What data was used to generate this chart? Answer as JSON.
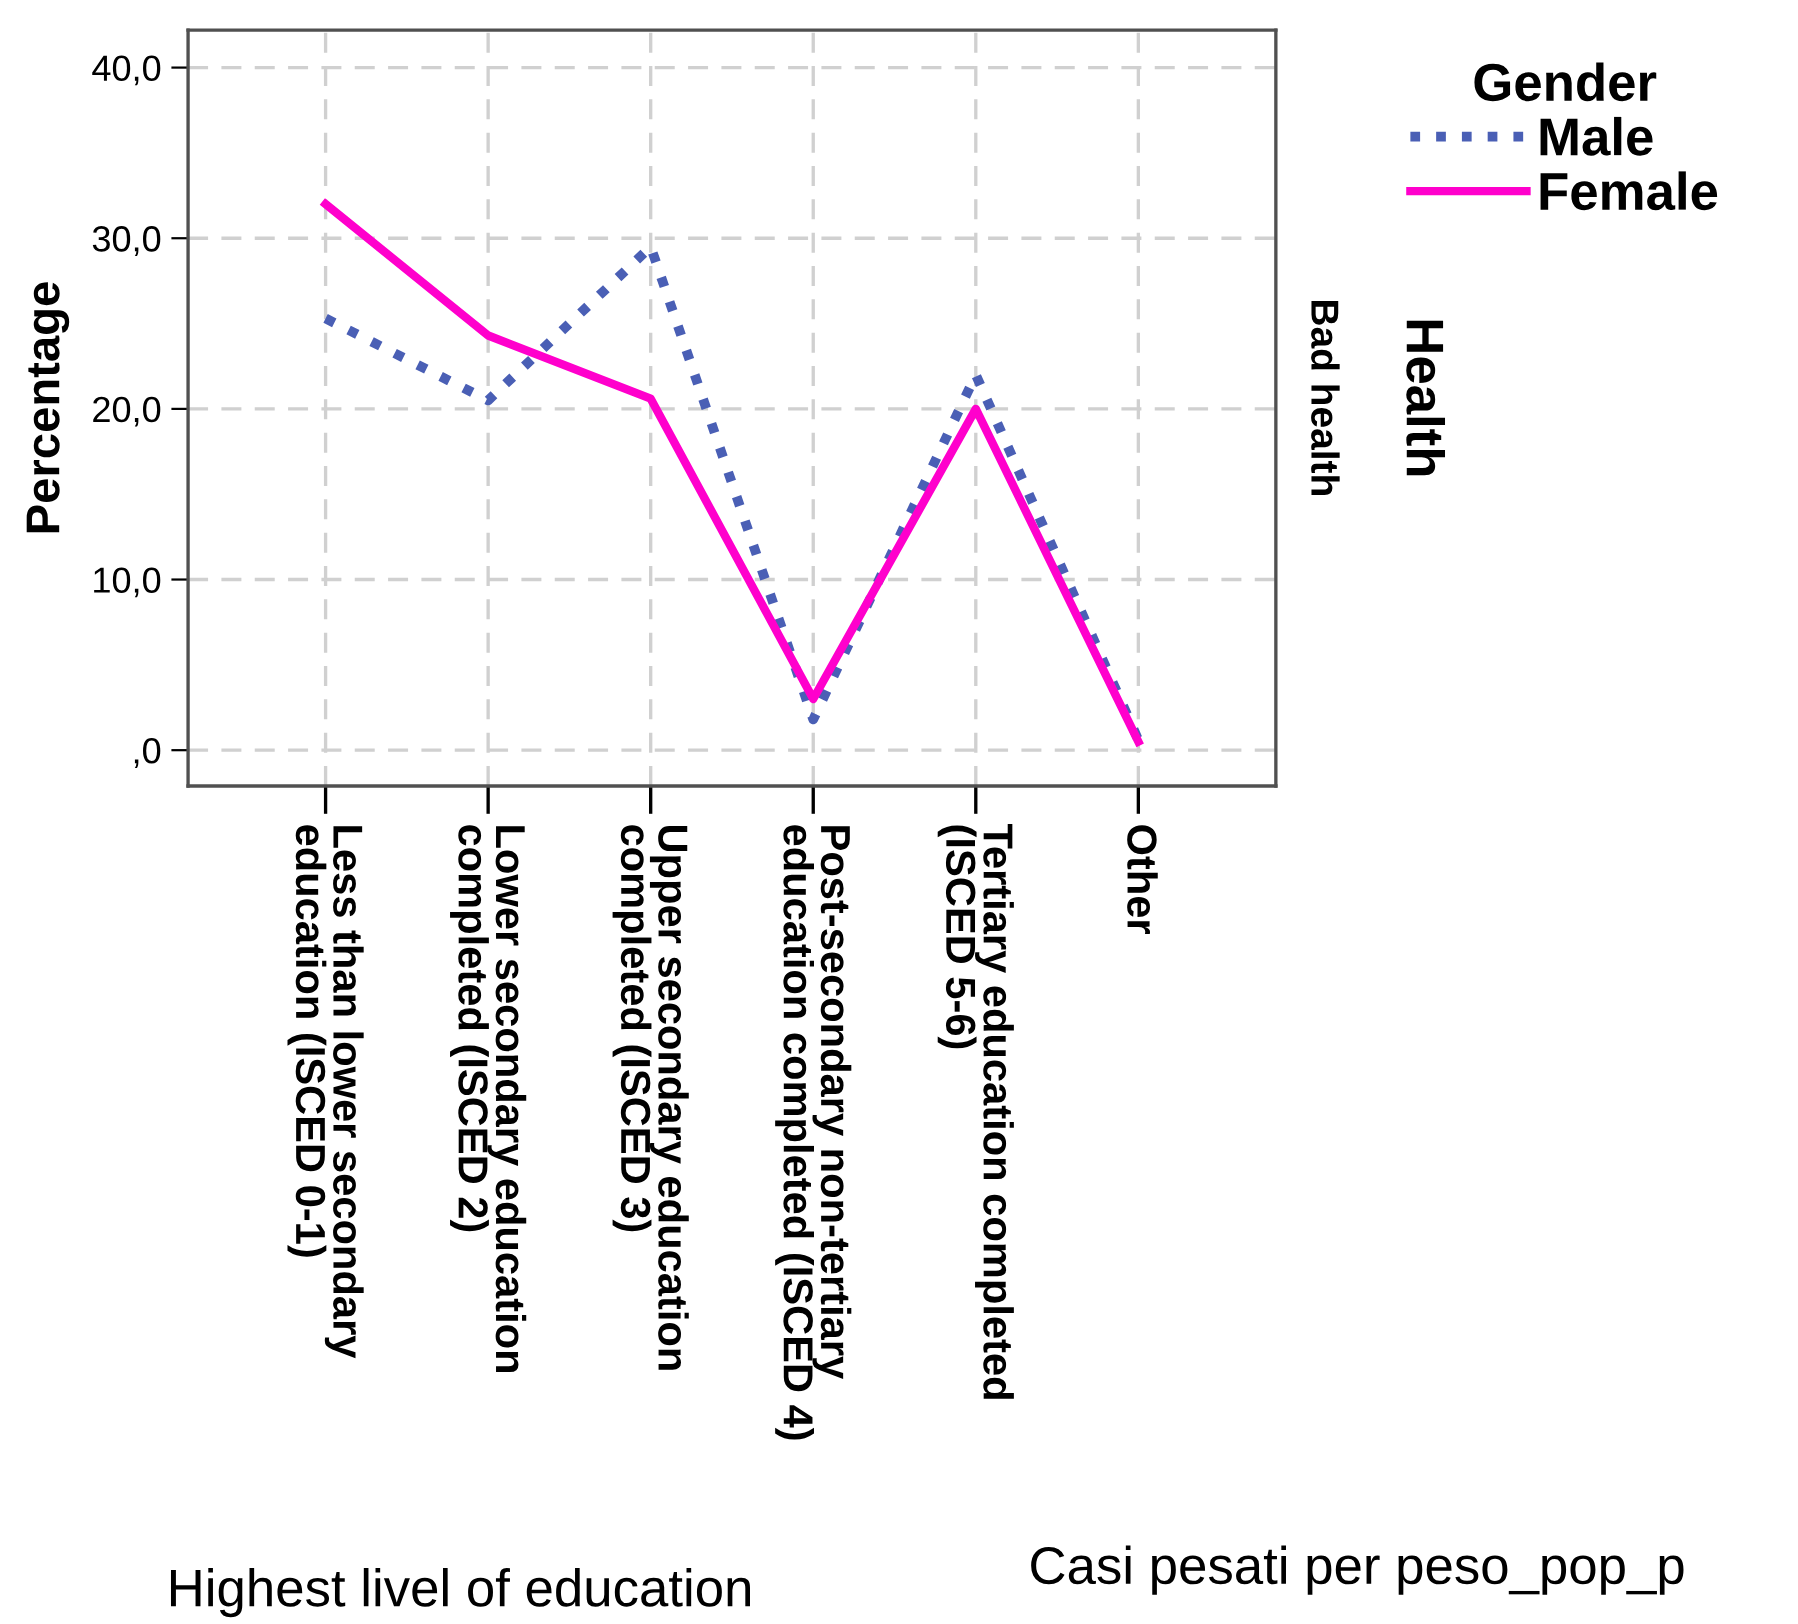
{
  "chart_data": {
    "type": "line",
    "xlabel": "Highest livel of education",
    "ylabel": "Percentage",
    "legend_title": "Gender",
    "categories": [
      "Less than lower secondary\neducation (ISCED 0-1)",
      "Lower secondary education\ncompleted (ISCED 2)",
      "Upper secondary education\ncompleted (ISCED 3)",
      "Post-secondary non-tertiary\neducation completed (ISCED 4)",
      "Tertiary education completed\n(ISCED 5-6)",
      "Other"
    ],
    "series": [
      {
        "name": "Male",
        "color": "#4a5fb5",
        "line_style": "dotted",
        "values": [
          25.3,
          20.5,
          29.5,
          1.8,
          22.0,
          0.6
        ]
      },
      {
        "name": "Female",
        "color": "#ff00cc",
        "line_style": "solid",
        "values": [
          32.0,
          24.3,
          20.6,
          3.0,
          20.0,
          0.5
        ]
      }
    ],
    "ylim": [
      -2.1,
      42.2
    ],
    "yticks": [
      {
        "value": 0,
        "label": ",0"
      },
      {
        "value": 10,
        "label": "10,0"
      },
      {
        "value": 20,
        "label": "20,0"
      },
      {
        "value": 30,
        "label": "30,0"
      },
      {
        "value": 40,
        "label": "40,0"
      }
    ],
    "grid": true,
    "legend": "top right",
    "annotations": [
      "Bad health",
      "Health",
      "Casi pesati per peso_pop_p"
    ]
  }
}
